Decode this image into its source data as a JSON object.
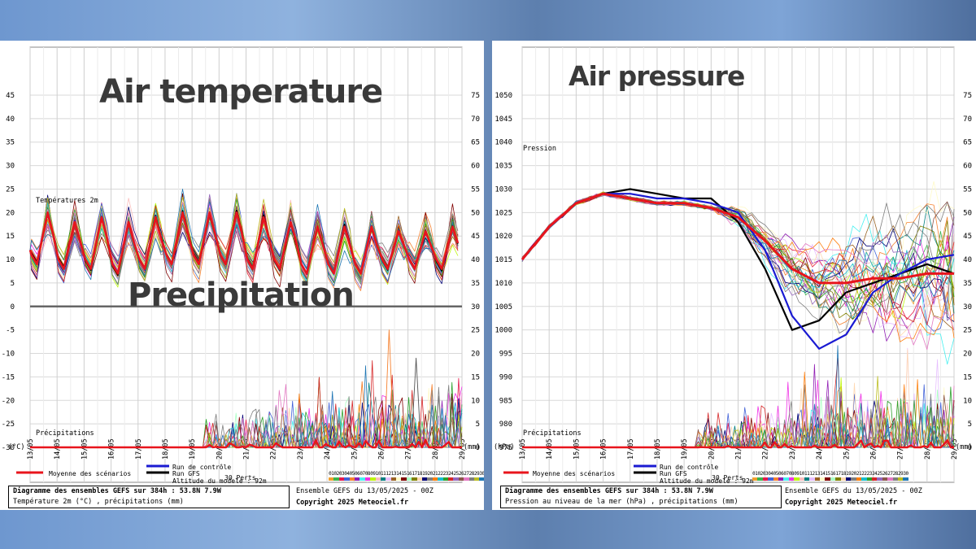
{
  "left": {
    "heading_top": "Air temperature",
    "heading_bottom": "Precipitation",
    "left_ticks": [
      "45",
      "40",
      "35",
      "30",
      "25",
      "20",
      "15",
      "10",
      "5",
      "0",
      "-5",
      "-10",
      "-15",
      "-20",
      "-25",
      "-30"
    ],
    "right_ticks": [
      "75",
      "70",
      "65",
      "60",
      "55",
      "50",
      "45",
      "40",
      "35",
      "30",
      "25",
      "20",
      "15",
      "10",
      "5",
      "0"
    ],
    "unit_left": "(°C)",
    "unit_right": "(mm)",
    "series_label_top": "Températures 2m",
    "series_label_bottom": "Précipitations",
    "footer_title": "Diagramme des ensembles GEFS sur 384h : 53.8N 7.9W",
    "footer_subtitle": "Température 2m (°C) , précipitations (mm)"
  },
  "right": {
    "heading_top": "Air pressure",
    "left_ticks": [
      "1050",
      "1045",
      "1040",
      "1035",
      "1030",
      "1025",
      "1020",
      "1015",
      "1010",
      "1005",
      "1000",
      "995",
      "990",
      "985",
      "980",
      "975"
    ],
    "right_ticks": [
      "75",
      "70",
      "65",
      "60",
      "55",
      "50",
      "45",
      "40",
      "35",
      "30",
      "25",
      "20",
      "15",
      "10",
      "5",
      "0"
    ],
    "unit_left": "(hPa)",
    "unit_right": "(mm)",
    "series_label_top": "Pression",
    "series_label_bottom": "Précipitations",
    "footer_title": "Diagramme des ensembles GEFS sur 384h : 53.8N 7.9W",
    "footer_subtitle": "Pression au niveau de la mer (hPa) , précipitations (mm)"
  },
  "common": {
    "dates": [
      "13/05",
      "14/05",
      "15/05",
      "16/05",
      "17/05",
      "18/05",
      "19/05",
      "20/05",
      "21/05",
      "22/05",
      "23/05",
      "24/05",
      "25/05",
      "26/05",
      "27/05",
      "28/05",
      "29/05"
    ],
    "legend_mean": "Moyenne des scénarios",
    "legend_control": "Run de contrôle",
    "legend_gfs": "Run GFS",
    "legend_perts": "30 Perts.",
    "altitude": "Altitude du modele : 92m",
    "ensemble": "Ensemble GEFS du 13/05/2025 - 00Z",
    "copyright": "Copyright 2025 Meteociel.fr",
    "perturbation_numbers": [
      "01",
      "02",
      "03",
      "04",
      "05",
      "06",
      "07",
      "08",
      "09",
      "10",
      "11",
      "12",
      "13",
      "14",
      "15",
      "16",
      "17",
      "18",
      "19",
      "20",
      "21",
      "22",
      "23",
      "24",
      "25",
      "26",
      "27",
      "28",
      "29",
      "30"
    ],
    "colors": {
      "mean": "#e8141c",
      "control": "#1a1ad2",
      "gfs": "#000000",
      "perturbations": [
        "#f0a030",
        "#3cb44b",
        "#e6194b",
        "#4363d8",
        "#f58231",
        "#911eb4",
        "#46f0f0",
        "#f032e6",
        "#bcf60c",
        "#fabebe",
        "#008080",
        "#e6beff",
        "#9a6324",
        "#fffac8",
        "#800000",
        "#aaffc3",
        "#808000",
        "#ffd8b1",
        "#000075",
        "#808080",
        "#ff7f0e",
        "#17becf",
        "#2ca02c",
        "#d62728",
        "#9467bd",
        "#8c564b",
        "#e377c2",
        "#7f7f7f",
        "#bcbd22",
        "#1f77b4"
      ]
    }
  },
  "chart_data": [
    {
      "type": "line",
      "panel": "left",
      "x": [
        "13/05",
        "14/05",
        "15/05",
        "16/05",
        "17/05",
        "18/05",
        "19/05",
        "20/05",
        "21/05",
        "22/05",
        "23/05",
        "24/05",
        "25/05",
        "26/05",
        "27/05",
        "28/05",
        "29/05"
      ],
      "ylim_left": [
        -30,
        45
      ],
      "ylim_right": [
        0,
        75
      ],
      "series": [
        {
          "name": "Températures 2m",
          "axis": "left",
          "unit": "°C",
          "mean_daily_min": [
            9,
            8,
            8,
            7,
            8,
            9,
            9,
            9,
            8,
            8,
            7,
            7,
            7,
            8,
            8,
            8,
            8
          ],
          "mean_daily_max": [
            20,
            18,
            19,
            18,
            19,
            20,
            20,
            20,
            19,
            18,
            17,
            17,
            17,
            16,
            16,
            17,
            16
          ]
        },
        {
          "name": "Précipitations",
          "axis": "right",
          "unit": "mm",
          "peaks": [
            {
              "x": "25/05",
              "value": 14
            },
            {
              "x": "26/05",
              "value": 25
            },
            {
              "x": "27/05",
              "value": 19
            }
          ]
        }
      ]
    },
    {
      "type": "line",
      "panel": "right",
      "x": [
        "13/05",
        "14/05",
        "15/05",
        "16/05",
        "17/05",
        "18/05",
        "19/05",
        "20/05",
        "21/05",
        "22/05",
        "23/05",
        "24/05",
        "25/05",
        "26/05",
        "27/05",
        "28/05",
        "29/05"
      ],
      "ylim_left": [
        975,
        1050
      ],
      "ylim_right": [
        0,
        75
      ],
      "series": [
        {
          "name": "Moyenne des scénarios",
          "axis": "left",
          "unit": "hPa",
          "values": [
            1015,
            1022,
            1027,
            1029,
            1028,
            1027,
            1027,
            1026,
            1024,
            1019,
            1013,
            1010,
            1010,
            1011,
            1011,
            1012,
            1012
          ]
        },
        {
          "name": "Run de contrôle",
          "axis": "left",
          "unit": "hPa",
          "values": [
            1015,
            1022,
            1027,
            1029,
            1029,
            1028,
            1028,
            1027,
            1025,
            1017,
            1003,
            996,
            999,
            1008,
            1012,
            1015,
            1016
          ]
        },
        {
          "name": "Run GFS",
          "axis": "left",
          "unit": "hPa",
          "values": [
            1015,
            1022,
            1027,
            1029,
            1030,
            1029,
            1028,
            1028,
            1023,
            1013,
            1000,
            1002,
            1008,
            1010,
            1012,
            1014,
            1012
          ]
        }
      ]
    }
  ]
}
